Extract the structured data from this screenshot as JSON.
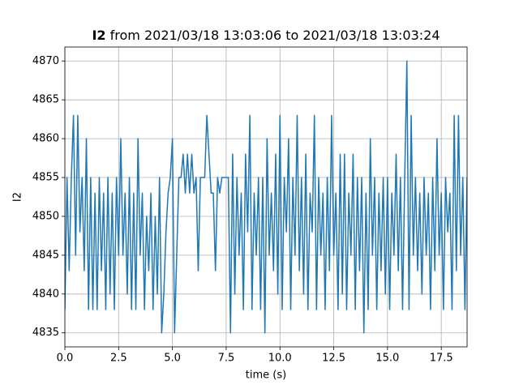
{
  "chart_data": {
    "type": "line",
    "title_series": "I2",
    "title": "from 2021/03/18 13:03:06 to 2021/03/18 13:03:24",
    "xlabel": "time (s)",
    "ylabel": "I2",
    "xlim": [
      0,
      18.7
    ],
    "ylim": [
      4833.2,
      4871.8
    ],
    "xticks": [
      {
        "value": 0,
        "label": "0.0"
      },
      2.5,
      {
        "value": 5,
        "label": "5.0"
      },
      7.5,
      {
        "value": 10,
        "label": "10.0"
      },
      12.5,
      {
        "value": 15,
        "label": "15.0"
      },
      17.5
    ],
    "yticks": [
      4835,
      4840,
      4845,
      4850,
      4855,
      4860,
      4865,
      4870
    ],
    "grid": true,
    "series": [
      {
        "name": "I2",
        "color": "#1f77b4",
        "x": [
          0,
          0.1,
          0.2,
          0.3,
          0.4,
          0.5,
          0.6,
          0.7,
          0.8,
          0.9,
          1,
          1.1,
          1.2,
          1.3,
          1.4,
          1.5,
          1.6,
          1.7,
          1.8,
          1.9,
          2,
          2.1,
          2.2,
          2.3,
          2.4,
          2.5,
          2.6,
          2.7,
          2.8,
          2.9,
          3,
          3.1,
          3.2,
          3.3,
          3.4,
          3.5,
          3.6,
          3.7,
          3.8,
          3.9,
          4,
          4.1,
          4.2,
          4.3,
          4.4,
          4.5,
          4.6,
          4.7,
          4.8,
          4.9,
          5,
          5.1,
          5.2,
          5.3,
          5.4,
          5.5,
          5.6,
          5.7,
          5.8,
          5.9,
          6,
          6.1,
          6.2,
          6.3,
          6.4,
          6.5,
          6.6,
          6.7,
          6.8,
          6.9,
          7,
          7.1,
          7.2,
          7.3,
          7.4,
          7.5,
          7.6,
          7.7,
          7.8,
          7.9,
          8,
          8.1,
          8.2,
          8.3,
          8.4,
          8.5,
          8.6,
          8.7,
          8.8,
          8.9,
          9,
          9.1,
          9.2,
          9.3,
          9.4,
          9.5,
          9.6,
          9.7,
          9.8,
          9.9,
          10,
          10.1,
          10.2,
          10.3,
          10.4,
          10.5,
          10.6,
          10.7,
          10.8,
          10.9,
          11,
          11.1,
          11.2,
          11.3,
          11.4,
          11.5,
          11.6,
          11.7,
          11.8,
          11.9,
          12,
          12.1,
          12.2,
          12.3,
          12.4,
          12.5,
          12.6,
          12.7,
          12.8,
          12.9,
          13,
          13.1,
          13.2,
          13.3,
          13.4,
          13.5,
          13.6,
          13.7,
          13.8,
          13.9,
          14,
          14.1,
          14.2,
          14.3,
          14.4,
          14.5,
          14.6,
          14.7,
          14.8,
          14.9,
          15,
          15.1,
          15.2,
          15.3,
          15.4,
          15.5,
          15.6,
          15.7,
          15.8,
          15.9,
          16,
          16.1,
          16.2,
          16.3,
          16.4,
          16.5,
          16.6,
          16.7,
          16.8,
          16.9,
          17,
          17.1,
          17.2,
          17.3,
          17.4,
          17.5,
          17.6,
          17.7,
          17.8,
          17.9,
          18,
          18.1,
          18.2,
          18.3,
          18.4,
          18.5,
          18.6,
          18.7
        ],
        "values": [
          4838,
          4855,
          4843,
          4855,
          4863,
          4845,
          4863,
          4848,
          4855,
          4843,
          4860,
          4838,
          4855,
          4838,
          4853,
          4838,
          4855,
          4843,
          4853,
          4838,
          4855,
          4840,
          4853,
          4838,
          4855,
          4845,
          4860,
          4845,
          4853,
          4840,
          4855,
          4838,
          4853,
          4838,
          4860,
          4845,
          4853,
          4838,
          4850,
          4843,
          4853,
          4838,
          4850,
          4840,
          4855,
          4835,
          4840,
          4848,
          4853,
          4855,
          4860,
          4835,
          4845,
          4855,
          4855,
          4858,
          4853,
          4858,
          4853,
          4858,
          4853,
          4855,
          4843,
          4855,
          4855,
          4855,
          4863,
          4858,
          4853,
          4853,
          4843,
          4855,
          4853,
          4855,
          4855,
          4855,
          4855,
          4835,
          4858,
          4840,
          4855,
          4845,
          4853,
          4838,
          4858,
          4848,
          4863,
          4838,
          4853,
          4845,
          4855,
          4838,
          4855,
          4835,
          4860,
          4845,
          4853,
          4843,
          4858,
          4840,
          4863,
          4838,
          4855,
          4848,
          4860,
          4838,
          4855,
          4845,
          4863,
          4843,
          4855,
          4840,
          4858,
          4838,
          4853,
          4848,
          4863,
          4838,
          4855,
          4845,
          4853,
          4838,
          4855,
          4843,
          4863,
          4845,
          4853,
          4838,
          4858,
          4840,
          4858,
          4838,
          4853,
          4845,
          4858,
          4838,
          4855,
          4843,
          4855,
          4835,
          4853,
          4838,
          4860,
          4845,
          4855,
          4838,
          4853,
          4843,
          4855,
          4840,
          4855,
          4838,
          4853,
          4845,
          4858,
          4843,
          4855,
          4838,
          4855,
          4870,
          4838,
          4863,
          4845,
          4855,
          4843,
          4853,
          4840,
          4855,
          4845,
          4853,
          4838,
          4855,
          4843,
          4860,
          4845,
          4853,
          4838,
          4855,
          4848,
          4853,
          4838,
          4863,
          4843,
          4863,
          4845,
          4855,
          4838,
          4855
        ]
      }
    ]
  }
}
